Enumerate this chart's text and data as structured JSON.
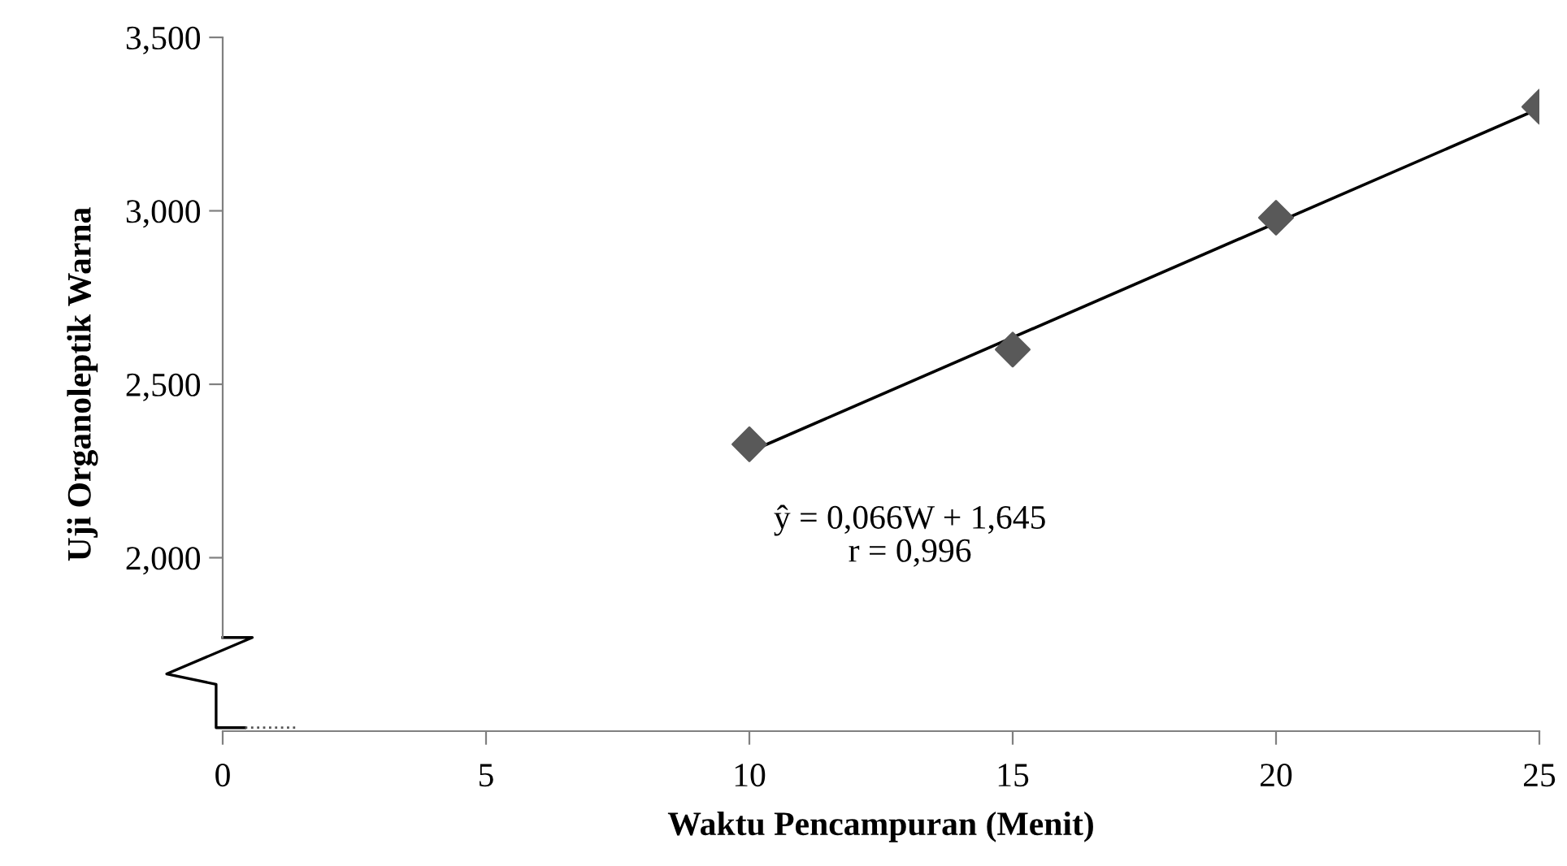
{
  "chart_data": {
    "type": "scatter",
    "xlabel": "Waktu Pencampuran (Menit)",
    "ylabel": "Uji Organoleptik Warna",
    "series": [
      {
        "color": "#595959",
        "marker": "diamond",
        "x": [
          10,
          15,
          20,
          25
        ],
        "values": [
          2.327,
          2.6,
          2.98,
          3.3
        ]
      },
      {
        "type": "line",
        "color": "#000000",
        "marker": "none",
        "x": [
          10,
          25
        ],
        "values": [
          2.305,
          3.295
        ]
      }
    ],
    "xlim": [
      0,
      25
    ],
    "xticks": [
      0,
      5,
      10,
      15,
      20,
      25
    ],
    "ylim": [
      1.5,
      3.5
    ],
    "yticks": [
      {
        "value": 2,
        "label": "2,000"
      },
      {
        "value": 2.5,
        "label": "2,500"
      },
      {
        "value": 3,
        "label": "3,000"
      },
      {
        "value": 3.5,
        "label": "3,500"
      }
    ],
    "grid": false,
    "legend": false,
    "annotations": [
      "ŷ = 0,066W + 1,645\nr = 0,996"
    ]
  }
}
